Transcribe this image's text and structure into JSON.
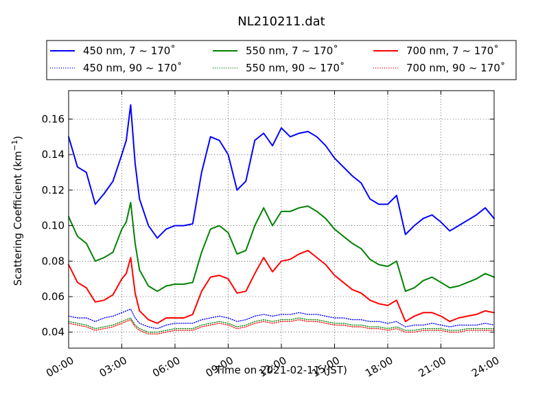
{
  "chart_data": {
    "type": "line",
    "title": "NL210211.dat",
    "xlabel": "Time on 2021-02-11 (JST)",
    "ylabel": "Scattering Coefficient (km",
    "ylabel_sup": "−1",
    "ylabel_close": ")",
    "xlim": [
      0,
      24
    ],
    "ylim": [
      0.031,
      0.176
    ],
    "x_ticks": [
      0,
      3,
      6,
      9,
      12,
      15,
      18,
      21,
      24
    ],
    "x_tick_labels": [
      "00:00",
      "03:00",
      "06:00",
      "09:00",
      "12:00",
      "15:00",
      "18:00",
      "21:00",
      "24:00"
    ],
    "y_ticks": [
      0.04,
      0.06,
      0.08,
      0.1,
      0.12,
      0.14,
      0.16
    ],
    "y_tick_labels": [
      "0.04",
      "0.06",
      "0.08",
      "0.10",
      "0.12",
      "0.14",
      "0.16"
    ],
    "grid": true,
    "legend_position": "top",
    "legend": [
      {
        "label": "450 nm, 7 ~ 170˚",
        "color": "#0000ff",
        "style": "solid"
      },
      {
        "label": "550 nm, 7 ~ 170˚",
        "color": "#008000",
        "style": "solid"
      },
      {
        "label": "700 nm, 7 ~ 170˚",
        "color": "#ff0000",
        "style": "solid"
      },
      {
        "label": "450 nm, 90 ~ 170˚",
        "color": "#0000ff",
        "style": "dotted"
      },
      {
        "label": "550 nm, 90 ~ 170˚",
        "color": "#008000",
        "style": "dotted"
      },
      {
        "label": "700 nm, 90 ~ 170˚",
        "color": "#ff0000",
        "style": "dotted"
      }
    ],
    "x": [
      0,
      0.5,
      1,
      1.5,
      2,
      2.5,
      3,
      3.25,
      3.5,
      3.75,
      4,
      4.5,
      5,
      5.5,
      6,
      6.5,
      7,
      7.5,
      8,
      8.5,
      9,
      9.5,
      10,
      10.5,
      11,
      11.5,
      12,
      12.5,
      13,
      13.5,
      14,
      14.5,
      15,
      15.5,
      16,
      16.5,
      17,
      17.5,
      18,
      18.5,
      19,
      19.5,
      20,
      20.5,
      21,
      21.5,
      22,
      22.5,
      23,
      23.5,
      24
    ],
    "series": [
      {
        "name": "450 nm, 7 ~ 170˚",
        "color": "#0000ff",
        "style": "solid",
        "values": [
          0.15,
          0.133,
          0.13,
          0.112,
          0.118,
          0.125,
          0.14,
          0.148,
          0.168,
          0.135,
          0.115,
          0.1,
          0.093,
          0.098,
          0.1,
          0.1,
          0.101,
          0.13,
          0.15,
          0.148,
          0.14,
          0.12,
          0.125,
          0.148,
          0.152,
          0.145,
          0.155,
          0.15,
          0.152,
          0.153,
          0.15,
          0.145,
          0.138,
          0.133,
          0.128,
          0.124,
          0.115,
          0.112,
          0.112,
          0.117,
          0.095,
          0.1,
          0.104,
          0.106,
          0.102,
          0.097,
          0.1,
          0.103,
          0.106,
          0.11,
          0.104
        ]
      },
      {
        "name": "550 nm, 7 ~ 170˚",
        "color": "#008000",
        "style": "solid",
        "values": [
          0.105,
          0.094,
          0.09,
          0.08,
          0.082,
          0.085,
          0.098,
          0.102,
          0.113,
          0.09,
          0.075,
          0.066,
          0.063,
          0.066,
          0.067,
          0.067,
          0.068,
          0.085,
          0.098,
          0.1,
          0.096,
          0.084,
          0.086,
          0.1,
          0.11,
          0.1,
          0.108,
          0.108,
          0.11,
          0.111,
          0.108,
          0.104,
          0.098,
          0.094,
          0.09,
          0.087,
          0.081,
          0.078,
          0.077,
          0.08,
          0.063,
          0.065,
          0.069,
          0.071,
          0.068,
          0.065,
          0.066,
          0.068,
          0.07,
          0.073,
          0.071
        ]
      },
      {
        "name": "700 nm, 7 ~ 170˚",
        "color": "#ff0000",
        "style": "solid",
        "values": [
          0.078,
          0.068,
          0.065,
          0.057,
          0.058,
          0.061,
          0.07,
          0.073,
          0.082,
          0.062,
          0.052,
          0.047,
          0.045,
          0.048,
          0.048,
          0.048,
          0.05,
          0.063,
          0.071,
          0.072,
          0.07,
          0.062,
          0.063,
          0.073,
          0.082,
          0.074,
          0.08,
          0.081,
          0.084,
          0.086,
          0.082,
          0.078,
          0.072,
          0.068,
          0.064,
          0.062,
          0.058,
          0.056,
          0.055,
          0.058,
          0.046,
          0.049,
          0.051,
          0.051,
          0.049,
          0.046,
          0.048,
          0.049,
          0.05,
          0.052,
          0.051
        ]
      },
      {
        "name": "450 nm, 90 ~ 170˚",
        "color": "#0000ff",
        "style": "dotted",
        "values": [
          0.049,
          0.048,
          0.048,
          0.046,
          0.048,
          0.049,
          0.051,
          0.052,
          0.053,
          0.048,
          0.045,
          0.043,
          0.042,
          0.044,
          0.045,
          0.045,
          0.045,
          0.047,
          0.048,
          0.049,
          0.048,
          0.046,
          0.047,
          0.049,
          0.05,
          0.049,
          0.05,
          0.05,
          0.051,
          0.05,
          0.05,
          0.049,
          0.048,
          0.048,
          0.047,
          0.047,
          0.046,
          0.046,
          0.045,
          0.046,
          0.043,
          0.044,
          0.044,
          0.045,
          0.044,
          0.043,
          0.044,
          0.044,
          0.044,
          0.045,
          0.044
        ]
      },
      {
        "name": "550 nm, 90 ~ 170˚",
        "color": "#008000",
        "style": "dotted",
        "values": [
          0.046,
          0.045,
          0.044,
          0.042,
          0.043,
          0.044,
          0.046,
          0.047,
          0.048,
          0.044,
          0.042,
          0.04,
          0.04,
          0.041,
          0.042,
          0.042,
          0.042,
          0.044,
          0.045,
          0.046,
          0.045,
          0.043,
          0.044,
          0.046,
          0.047,
          0.046,
          0.047,
          0.047,
          0.048,
          0.047,
          0.047,
          0.046,
          0.045,
          0.045,
          0.044,
          0.044,
          0.043,
          0.043,
          0.042,
          0.043,
          0.041,
          0.041,
          0.042,
          0.042,
          0.042,
          0.041,
          0.041,
          0.042,
          0.042,
          0.042,
          0.042
        ]
      },
      {
        "name": "700 nm, 90 ~ 170˚",
        "color": "#ff0000",
        "style": "dotted",
        "values": [
          0.045,
          0.044,
          0.043,
          0.041,
          0.042,
          0.043,
          0.045,
          0.046,
          0.047,
          0.043,
          0.041,
          0.039,
          0.039,
          0.04,
          0.041,
          0.041,
          0.041,
          0.043,
          0.044,
          0.045,
          0.044,
          0.042,
          0.043,
          0.045,
          0.046,
          0.045,
          0.046,
          0.046,
          0.047,
          0.046,
          0.046,
          0.045,
          0.044,
          0.044,
          0.043,
          0.043,
          0.042,
          0.042,
          0.041,
          0.042,
          0.04,
          0.04,
          0.041,
          0.041,
          0.041,
          0.04,
          0.04,
          0.041,
          0.041,
          0.041,
          0.041
        ]
      }
    ]
  }
}
